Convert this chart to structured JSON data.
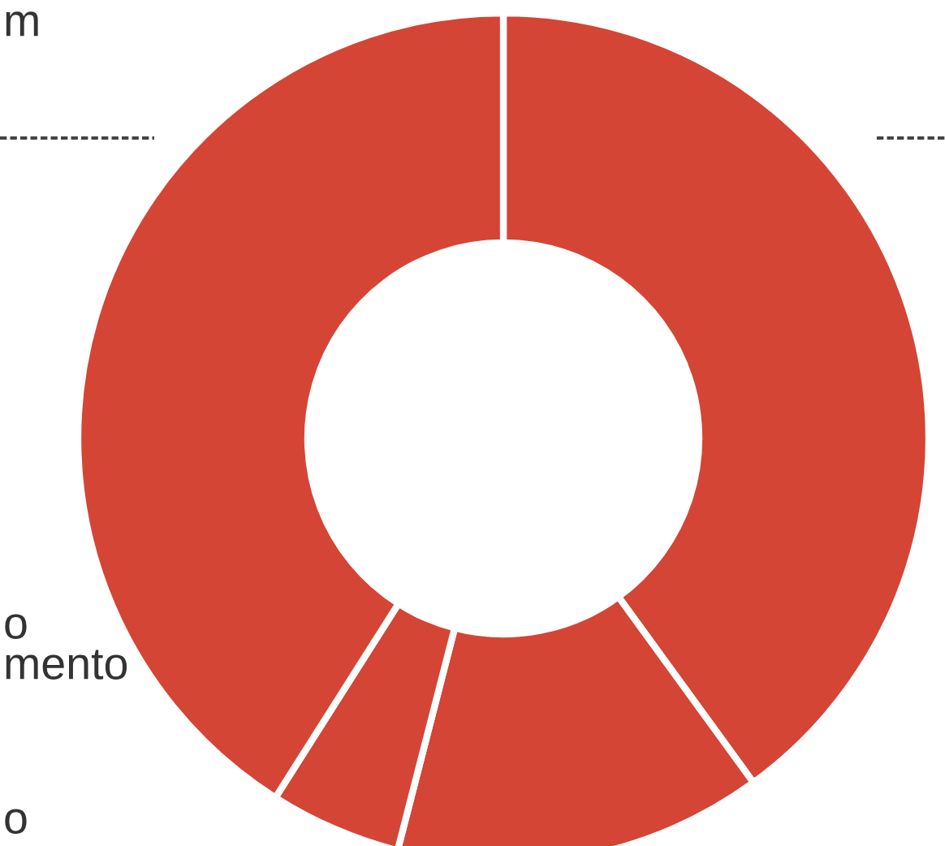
{
  "chart_data": {
    "type": "donut",
    "categories": [
      null,
      null,
      null,
      null
    ],
    "values": [
      40,
      14,
      5,
      41
    ],
    "colors": [
      "#d44535",
      "#d44535",
      "#d44535",
      "#d44535"
    ],
    "annotations": [
      "m",
      "o",
      "mento",
      "o"
    ]
  }
}
